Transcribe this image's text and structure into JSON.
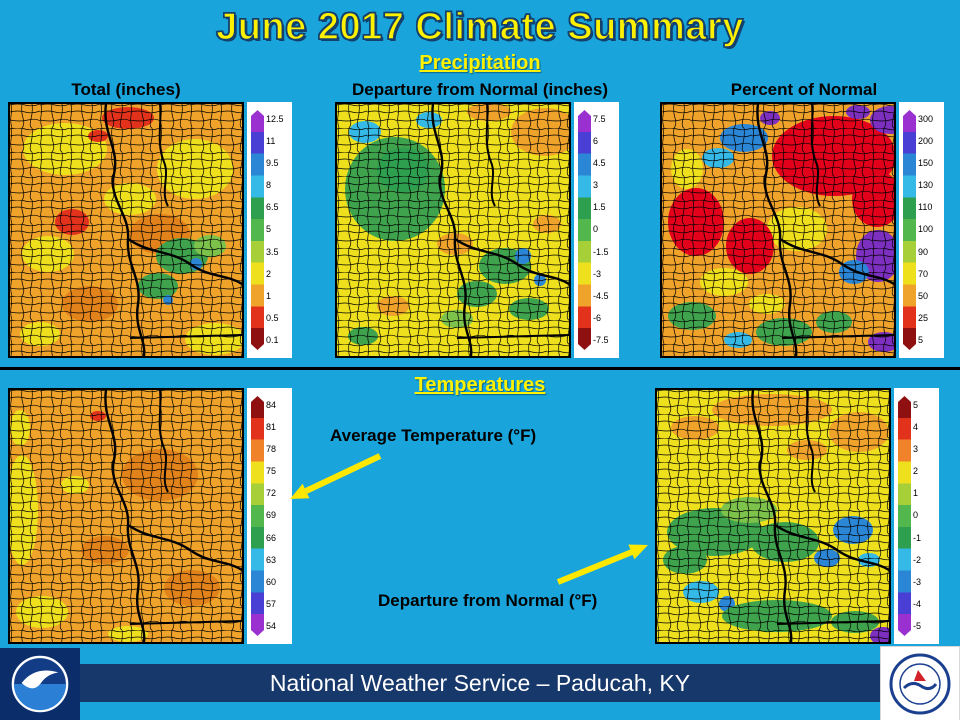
{
  "slide": {
    "title": "June 2017 Climate Summary"
  },
  "precipitation": {
    "heading": "Precipitation",
    "maps": [
      {
        "title": "Total (inches)",
        "scale": {
          "labels": [
            "12.5",
            "11",
            "9.5",
            "8",
            "6.5",
            "5",
            "3.5",
            "2",
            "1",
            "0.5",
            "0.1"
          ],
          "colors": [
            "#9B30D0",
            "#4A3FD4",
            "#2C86D6",
            "#35B9E6",
            "#2E9E4F",
            "#52B84D",
            "#A7CF38",
            "#EFE01E",
            "#F0A32A",
            "#E3321B",
            "#8F1010"
          ]
        }
      },
      {
        "title": "Departure from Normal (inches)",
        "scale": {
          "labels": [
            "7.5",
            "6",
            "4.5",
            "3",
            "1.5",
            "0",
            "-1.5",
            "-3",
            "-4.5",
            "-6",
            "-7.5"
          ],
          "colors": [
            "#9B30D0",
            "#4A3FD4",
            "#2C86D6",
            "#35B9E6",
            "#2E9E4F",
            "#52B84D",
            "#A7CF38",
            "#EFE01E",
            "#F0A32A",
            "#E3321B",
            "#8F1010"
          ]
        }
      },
      {
        "title": "Percent of Normal",
        "scale": {
          "labels": [
            "300",
            "200",
            "150",
            "130",
            "110",
            "100",
            "90",
            "70",
            "50",
            "25",
            "5"
          ],
          "colors": [
            "#9B30D0",
            "#4A3FD4",
            "#2C86D6",
            "#35B9E6",
            "#2E9E4F",
            "#52B84D",
            "#A7CF38",
            "#EFE01E",
            "#F0A32A",
            "#E3321B",
            "#8F1010"
          ]
        }
      }
    ]
  },
  "temperatures": {
    "heading": "Temperatures",
    "maps": [
      {
        "title": "Average Temperature (°F)",
        "scale": {
          "labels": [
            "84",
            "81",
            "78",
            "75",
            "72",
            "69",
            "66",
            "63",
            "60",
            "57",
            "54"
          ],
          "colors": [
            "#8F1010",
            "#E3321B",
            "#F0832A",
            "#EFE01E",
            "#A7CF38",
            "#52B84D",
            "#2E9E4F",
            "#35B9E6",
            "#2C86D6",
            "#4A3FD4",
            "#9B30D0"
          ]
        }
      },
      {
        "title": "Departure from Normal (°F)",
        "scale": {
          "labels": [
            "5",
            "4",
            "3",
            "2",
            "1",
            "0",
            "-1",
            "-2",
            "-3",
            "-4",
            "-5"
          ],
          "colors": [
            "#8F1010",
            "#E3321B",
            "#F0832A",
            "#EFE01E",
            "#A7CF38",
            "#52B84D",
            "#2E9E4F",
            "#35B9E6",
            "#2C86D6",
            "#4A3FD4",
            "#9B30D0"
          ]
        }
      }
    ]
  },
  "footer": {
    "text": "National Weather Service – Paducah, KY",
    "noaa_logo": "NOAA",
    "nws_logo": "National Weather Service"
  },
  "colors": {
    "background": "#19A5DC",
    "title_text": "#FFF200",
    "heading_text": "#FFF200",
    "footer_bar": "#17386B",
    "arrow": "#FFE800"
  }
}
